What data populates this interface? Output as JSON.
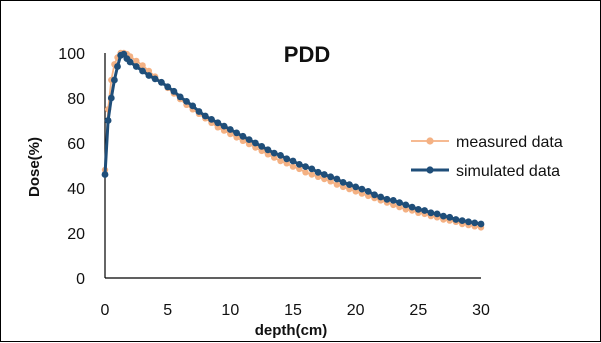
{
  "chart_data": {
    "type": "line",
    "title": "PDD",
    "xlabel": "depth(cm)",
    "ylabel": "Dose(%)",
    "xlim": [
      0,
      30
    ],
    "ylim": [
      0,
      100
    ],
    "xticks": [
      "0",
      "5",
      "10",
      "15",
      "20",
      "25",
      "30"
    ],
    "yticks": [
      "0",
      "20",
      "40",
      "60",
      "80",
      "100"
    ],
    "grid": false,
    "legend_position": "right",
    "series": [
      {
        "name": "measured data",
        "color": "#F4B183",
        "x": [
          0,
          0.25,
          0.5,
          0.75,
          1,
          1.25,
          1.5,
          1.75,
          2,
          2.5,
          3,
          3.5,
          4,
          4.5,
          5,
          5.5,
          6,
          6.5,
          7,
          7.5,
          8,
          8.5,
          9,
          9.5,
          10,
          10.5,
          11,
          11.5,
          12,
          12.5,
          13,
          13.5,
          14,
          14.5,
          15,
          15.5,
          16,
          16.5,
          17,
          17.5,
          18,
          18.5,
          19,
          19.5,
          20,
          20.5,
          21,
          21.5,
          22,
          22.5,
          23,
          23.5,
          24,
          24.5,
          25,
          25.5,
          26,
          26.5,
          27,
          27.5,
          28,
          28.5,
          29,
          29.5,
          30
        ],
        "y": [
          48,
          75,
          88,
          95,
          98,
          100,
          100,
          99.5,
          98.5,
          96.5,
          94.5,
          92,
          89.5,
          87,
          84.5,
          82,
          79.5,
          77,
          75,
          73,
          71,
          69,
          67,
          65.5,
          64,
          62.5,
          61,
          59.5,
          58,
          56.5,
          55,
          53.5,
          52,
          51,
          49.5,
          48.5,
          47,
          46,
          45,
          44,
          43,
          41.5,
          40.5,
          39.5,
          38.5,
          37.5,
          36.5,
          35.5,
          34.5,
          33.5,
          32.5,
          31.5,
          30.5,
          30,
          29,
          28.5,
          27.5,
          27,
          26,
          25.5,
          25,
          24,
          23.5,
          23,
          22.5
        ]
      },
      {
        "name": "simulated data",
        "color": "#1F4E79",
        "x": [
          0,
          0.25,
          0.5,
          0.75,
          1,
          1.25,
          1.5,
          1.75,
          2,
          2.5,
          3,
          3.5,
          4,
          4.5,
          5,
          5.5,
          6,
          6.5,
          7,
          7.5,
          8,
          8.5,
          9,
          9.5,
          10,
          10.5,
          11,
          11.5,
          12,
          12.5,
          13,
          13.5,
          14,
          14.5,
          15,
          15.5,
          16,
          16.5,
          17,
          17.5,
          18,
          18.5,
          19,
          19.5,
          20,
          20.5,
          21,
          21.5,
          22,
          22.5,
          23,
          23.5,
          24,
          24.5,
          25,
          25.5,
          26,
          26.5,
          27,
          27.5,
          28,
          28.5,
          29,
          29.5,
          30
        ],
        "y": [
          46,
          70,
          80,
          88,
          94,
          99,
          99.5,
          97.5,
          96,
          94,
          92,
          90,
          88.5,
          87,
          85,
          83,
          80.5,
          78.5,
          76.5,
          74,
          72,
          70.5,
          69,
          67.5,
          66,
          64.5,
          63,
          61.5,
          60,
          58.5,
          57,
          55.5,
          54.5,
          53,
          52,
          50.5,
          49.5,
          48.5,
          47,
          46,
          45,
          44,
          42.5,
          41.5,
          40.5,
          39.5,
          38.5,
          37,
          36,
          35,
          34.5,
          33.5,
          32.5,
          31.5,
          30.5,
          30,
          29,
          28.5,
          27.5,
          27,
          26,
          25.5,
          25,
          24.5,
          24
        ]
      }
    ]
  }
}
